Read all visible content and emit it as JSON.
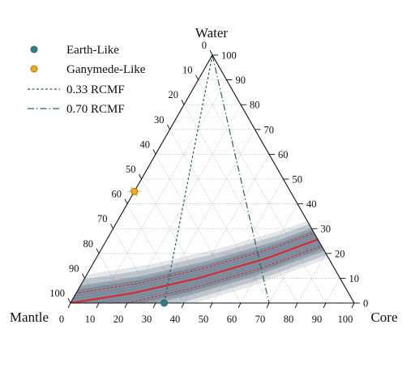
{
  "chart_data": {
    "type": "scatter",
    "subtype": "ternary",
    "axes": {
      "top": "Water",
      "left": "Mantle",
      "right": "Core",
      "range": [
        0,
        100
      ],
      "ticks": [
        0,
        10,
        20,
        30,
        40,
        50,
        60,
        70,
        80,
        90,
        100
      ],
      "grid": true
    },
    "legend": {
      "position": "top-left",
      "entries": [
        {
          "label": "Earth-Like",
          "kind": "marker",
          "color": "#2f7f8e"
        },
        {
          "label": "Ganymede-Like",
          "kind": "marker",
          "color": "#f0ac1c"
        },
        {
          "label": "0.33 RCMF",
          "kind": "dashed",
          "color": "#2f5f55"
        },
        {
          "label": "0.70 RCMF",
          "kind": "dashdot",
          "color": "#2f5f55"
        }
      ]
    },
    "points": [
      {
        "name": "Earth-Like",
        "water": 0,
        "core": 33,
        "mantle": 67,
        "color": "#2f7f8e"
      },
      {
        "name": "Ganymede-Like",
        "water": 45,
        "core": 0,
        "mantle": 55,
        "color": "#f0ac1c",
        "error": 2
      }
    ],
    "rcmf_lines": [
      {
        "name": "0.33 RCMF",
        "from": {
          "water": 100,
          "core": 0
        },
        "to": {
          "water": 0,
          "core": 33
        }
      },
      {
        "name": "0.70 RCMF",
        "from": {
          "water": 100,
          "core": 0
        },
        "to": {
          "water": 0,
          "core": 70
        }
      }
    ],
    "posterior_band": {
      "color": "#6f7f90",
      "median": [
        {
          "core": 0,
          "water": 0
        },
        {
          "core": 20,
          "water": 4
        },
        {
          "core": 40,
          "water": 10
        },
        {
          "core": 60,
          "water": 18
        },
        {
          "core": 75,
          "water": 26
        },
        {
          "core": 85,
          "water": 31
        }
      ],
      "inner_width": 4,
      "outer_width": 9.5
    },
    "colors": {
      "median_line": "#e3262e",
      "band": "#6f7f90",
      "grid": "#b5b5b5"
    }
  }
}
